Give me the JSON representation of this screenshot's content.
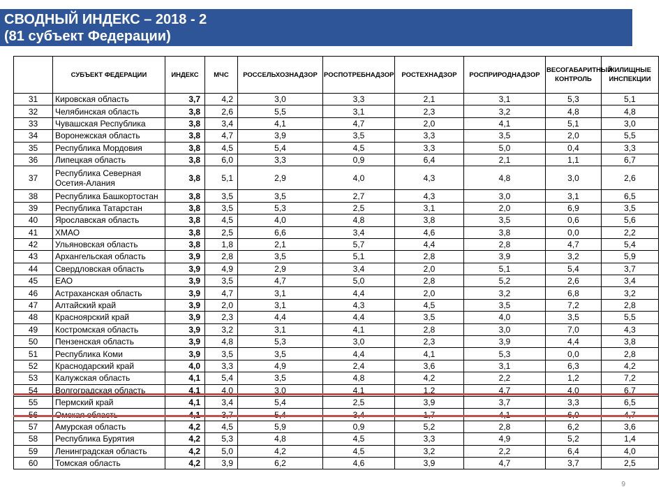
{
  "banner": {
    "line1": "СВОДНЫЙ ИНДЕКС – 2018 - 2",
    "line2": "(81 субъект Федерации)"
  },
  "columns": {
    "num": "",
    "subject": "СУБЪЕКТ ФЕДЕРАЦИИ",
    "index": "ИНДЕКС",
    "mchs": "МЧС",
    "rsn": "РОССЕЛЬХОЗНАДЗОР",
    "rpn": "РОСПОТРЕБНАДЗОР",
    "rtn": "РОСТЕХНАДЗОР",
    "rprn": "РОСПРИРОДНАДЗОР",
    "weight": "ВЕСОГАБАРИТНЫЙ КОНТРОЛЬ",
    "housing": "ЖИЛИЩНЫЕ ИНСПЕКЦИИ"
  },
  "rows": [
    [
      "31",
      "Кировская область",
      "3,7",
      "4,2",
      "3,0",
      "3,3",
      "2,1",
      "3,1",
      "5,3",
      "5,1"
    ],
    [
      "32",
      "Челябинская область",
      "3,8",
      "2,6",
      "5,5",
      "3,1",
      "2,3",
      "3,2",
      "4,8",
      "4,8"
    ],
    [
      "33",
      "Чувашская Республика",
      "3,8",
      "3,4",
      "4,1",
      "4,7",
      "2,0",
      "4,1",
      "5,1",
      "3,0"
    ],
    [
      "34",
      "Воронежская область",
      "3,8",
      "4,7",
      "3,9",
      "3,5",
      "3,3",
      "3,5",
      "2,0",
      "5,5"
    ],
    [
      "35",
      "Республика Мордовия",
      "3,8",
      "4,5",
      "5,4",
      "4,5",
      "3,3",
      "5,0",
      "0,4",
      "3,3"
    ],
    [
      "36",
      "Липецкая область",
      "3,8",
      "6,0",
      "3,3",
      "0,9",
      "6,4",
      "2,1",
      "1,1",
      "6,7"
    ],
    [
      "37",
      "Республика Северная Осетия-Алания",
      "3,8",
      "5,1",
      "2,9",
      "4,0",
      "4,3",
      "4,8",
      "3,0",
      "2,6"
    ],
    [
      "38",
      "Республика Башкортостан",
      "3,8",
      "3,5",
      "3,5",
      "2,7",
      "4,3",
      "3,0",
      "3,1",
      "6,5"
    ],
    [
      "39",
      "Республика Татарстан",
      "3,8",
      "3,5",
      "5,3",
      "2,5",
      "3,1",
      "2,0",
      "6,9",
      "3,5"
    ],
    [
      "40",
      "Ярославская область",
      "3,8",
      "4,5",
      "4,0",
      "4,8",
      "3,8",
      "3,5",
      "0,6",
      "5,6"
    ],
    [
      "41",
      "ХМАО",
      "3,8",
      "2,5",
      "6,6",
      "3,4",
      "4,6",
      "3,8",
      "0,0",
      "2,2"
    ],
    [
      "42",
      "Ульяновская область",
      "3,8",
      "1,8",
      "2,1",
      "5,7",
      "4,4",
      "2,8",
      "4,7",
      "5,4"
    ],
    [
      "43",
      "Архангельская область",
      "3,9",
      "2,8",
      "3,5",
      "5,1",
      "2,8",
      "3,9",
      "3,2",
      "5,9"
    ],
    [
      "44",
      "Свердловская область",
      "3,9",
      "4,9",
      "2,9",
      "3,4",
      "2,0",
      "5,1",
      "5,4",
      "3,7"
    ],
    [
      "45",
      "ЕАО",
      "3,9",
      "3,5",
      "4,7",
      "5,0",
      "2,8",
      "5,2",
      "2,6",
      "3,4"
    ],
    [
      "46",
      "Астраханская область",
      "3,9",
      "4,7",
      "3,1",
      "4,4",
      "2,0",
      "3,2",
      "6,8",
      "3,2"
    ],
    [
      "47",
      "Алтайский край",
      "3,9",
      "2,0",
      "3,1",
      "4,3",
      "4,5",
      "3,5",
      "7,2",
      "2,8"
    ],
    [
      "48",
      "Красноярский край",
      "3,9",
      "2,3",
      "4,4",
      "4,4",
      "3,5",
      "4,0",
      "3,5",
      "5,5"
    ],
    [
      "49",
      "Костромская область",
      "3,9",
      "3,2",
      "3,1",
      "4,1",
      "2,8",
      "3,0",
      "7,0",
      "4,3"
    ],
    [
      "50",
      "Пензенская область",
      "3,9",
      "4,8",
      "5,3",
      "3,0",
      "2,3",
      "3,9",
      "4,4",
      "3,8"
    ],
    [
      "51",
      "Республика Коми",
      "3,9",
      "3,5",
      "3,5",
      "4,4",
      "4,1",
      "5,3",
      "0,0",
      "2,8"
    ],
    [
      "52",
      "Краснодарский край",
      "4,0",
      "3,3",
      "4,9",
      "2,4",
      "3,6",
      "3,1",
      "6,3",
      "4,2"
    ],
    [
      "53",
      "Калужская область",
      "4,1",
      "5,4",
      "3,5",
      "4,8",
      "4,2",
      "2,2",
      "1,2",
      "7,2"
    ],
    [
      "54",
      "Волгоградская область",
      "4,1",
      "4,0",
      "3,0",
      "4,1",
      "1,2",
      "4,7",
      "4,0",
      "6,7"
    ],
    [
      "55",
      "Пермский край",
      "4,1",
      "3,4",
      "5,4",
      "2,5",
      "3,9",
      "3,7",
      "3,3",
      "6,5"
    ],
    [
      "56",
      "Омская область",
      "4,1",
      "3,7",
      "5,4",
      "3,4",
      "1,7",
      "4,1",
      "6,0",
      "4,7"
    ],
    [
      "57",
      "Амурская область",
      "4,2",
      "4,5",
      "5,9",
      "0,9",
      "5,2",
      "2,8",
      "6,2",
      "3,6"
    ],
    [
      "58",
      "Республика Бурятия",
      "4,2",
      "5,3",
      "4,8",
      "4,5",
      "3,3",
      "4,9",
      "5,2",
      "1,4"
    ],
    [
      "59",
      "Ленинградская область",
      "4,2",
      "5,0",
      "4,2",
      "4,5",
      "3,2",
      "2,2",
      "6,4",
      "4,0"
    ],
    [
      "60",
      "Томская область",
      "4,2",
      "3,9",
      "6,2",
      "4,6",
      "3,9",
      "4,7",
      "3,7",
      "2,5"
    ]
  ],
  "page_number": "9",
  "colors": {
    "banner": "#2e5597",
    "highlight_line": "#c0504d"
  }
}
